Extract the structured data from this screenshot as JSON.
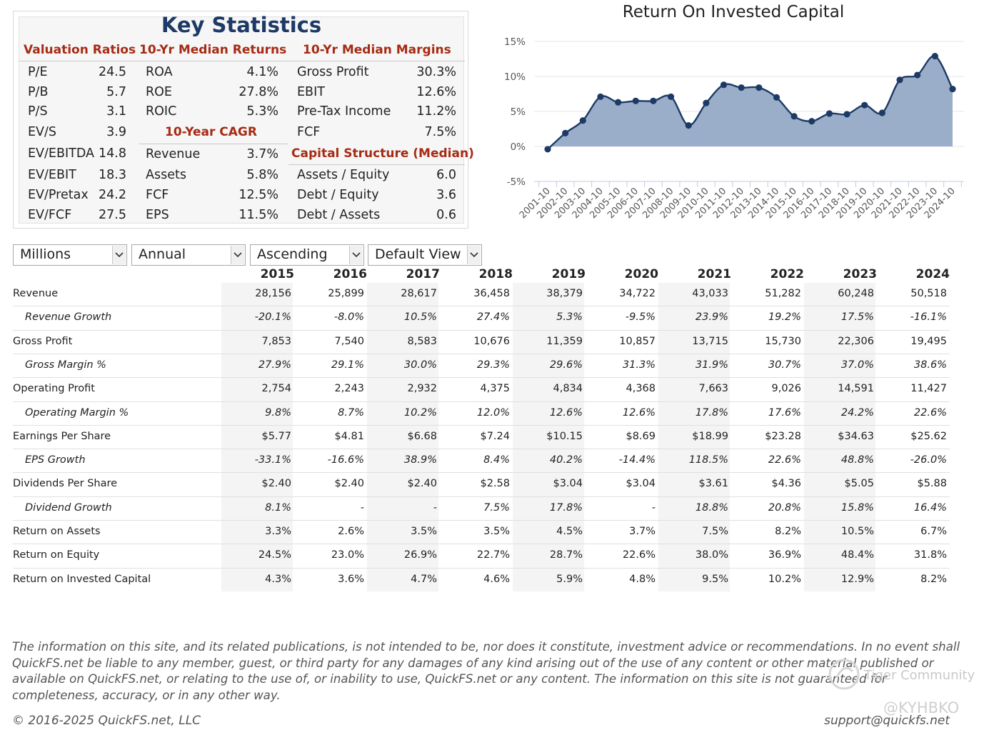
{
  "key_stats": {
    "title": "Key Statistics",
    "sections": {
      "valuation": "Valuation Ratios",
      "returns": "10-Yr Median Returns",
      "margins": "10-Yr Median Margins",
      "cagr": "10-Year CAGR",
      "capital": "Capital Structure (Median)"
    },
    "valuation": [
      {
        "label": "P/E",
        "value": "24.5"
      },
      {
        "label": "P/B",
        "value": "5.7"
      },
      {
        "label": "P/S",
        "value": "3.1"
      },
      {
        "label": "EV/S",
        "value": "3.9"
      },
      {
        "label": "EV/EBITDA",
        "value": "14.8"
      },
      {
        "label": "EV/EBIT",
        "value": "18.3"
      },
      {
        "label": "EV/Pretax",
        "value": "24.2"
      },
      {
        "label": "EV/FCF",
        "value": "27.5"
      }
    ],
    "returns": [
      {
        "label": "ROA",
        "value": "4.1%"
      },
      {
        "label": "ROE",
        "value": "27.8%"
      },
      {
        "label": "ROIC",
        "value": "5.3%"
      }
    ],
    "cagr": [
      {
        "label": "Revenue",
        "value": "3.7%"
      },
      {
        "label": "Assets",
        "value": "5.8%"
      },
      {
        "label": "FCF",
        "value": "12.5%"
      },
      {
        "label": "EPS",
        "value": "11.5%"
      }
    ],
    "margins": [
      {
        "label": "Gross Profit",
        "value": "30.3%"
      },
      {
        "label": "EBIT",
        "value": "12.6%"
      },
      {
        "label": "Pre-Tax Income",
        "value": "11.2%"
      },
      {
        "label": "FCF",
        "value": "7.5%"
      }
    ],
    "capital": [
      {
        "label": "Assets / Equity",
        "value": "6.0"
      },
      {
        "label": "Debt / Equity",
        "value": "3.6"
      },
      {
        "label": "Debt / Assets",
        "value": "0.6"
      }
    ]
  },
  "chart_data": {
    "type": "area",
    "title": "Return On Invested Capital",
    "x": [
      "2001-10",
      "2002-10",
      "2003-10",
      "2004-10",
      "2005-10",
      "2006-10",
      "2007-10",
      "2008-10",
      "2009-10",
      "2010-10",
      "2011-10",
      "2012-10",
      "2013-10",
      "2014-10",
      "2015-10",
      "2016-10",
      "2017-10",
      "2018-10",
      "2019-10",
      "2020-10",
      "2021-10",
      "2022-10",
      "2023-10",
      "2024-10"
    ],
    "values": [
      -0.4,
      1.9,
      3.7,
      7.1,
      6.3,
      6.5,
      6.5,
      7.1,
      3.0,
      6.2,
      8.8,
      8.4,
      8.4,
      7.0,
      4.3,
      3.6,
      4.7,
      4.6,
      5.9,
      4.8,
      9.5,
      10.2,
      12.9,
      8.2
    ],
    "ylim": [
      -5,
      15
    ],
    "yticks": [
      "15%",
      "10%",
      "5%",
      "0%",
      "-5%"
    ],
    "ytick_values": [
      15,
      10,
      5,
      0,
      -5
    ],
    "series_color": "#1d3a66",
    "fill_color": "#9baec9",
    "grid": true
  },
  "controls": {
    "units": "Millions",
    "period": "Annual",
    "order": "Ascending",
    "view": "Default View"
  },
  "table": {
    "years": [
      "2015",
      "2016",
      "2017",
      "2018",
      "2019",
      "2020",
      "2021",
      "2022",
      "2023",
      "2024"
    ],
    "rows": [
      {
        "label": "Revenue",
        "sub": false,
        "values": [
          "28,156",
          "25,899",
          "28,617",
          "36,458",
          "38,379",
          "34,722",
          "43,033",
          "51,282",
          "60,248",
          "50,518"
        ]
      },
      {
        "label": "Revenue Growth",
        "sub": true,
        "values": [
          "-20.1%",
          "-8.0%",
          "10.5%",
          "27.4%",
          "5.3%",
          "-9.5%",
          "23.9%",
          "19.2%",
          "17.5%",
          "-16.1%"
        ]
      },
      {
        "label": "Gross Profit",
        "sub": false,
        "values": [
          "7,853",
          "7,540",
          "8,583",
          "10,676",
          "11,359",
          "10,857",
          "13,715",
          "15,730",
          "22,306",
          "19,495"
        ]
      },
      {
        "label": "Gross Margin %",
        "sub": true,
        "values": [
          "27.9%",
          "29.1%",
          "30.0%",
          "29.3%",
          "29.6%",
          "31.3%",
          "31.9%",
          "30.7%",
          "37.0%",
          "38.6%"
        ]
      },
      {
        "label": "Operating Profit",
        "sub": false,
        "values": [
          "2,754",
          "2,243",
          "2,932",
          "4,375",
          "4,834",
          "4,368",
          "7,663",
          "9,026",
          "14,591",
          "11,427"
        ]
      },
      {
        "label": "Operating Margin %",
        "sub": true,
        "values": [
          "9.8%",
          "8.7%",
          "10.2%",
          "12.0%",
          "12.6%",
          "12.6%",
          "17.8%",
          "17.6%",
          "24.2%",
          "22.6%"
        ]
      },
      {
        "label": "Earnings Per Share",
        "sub": false,
        "values": [
          "$5.77",
          "$4.81",
          "$6.68",
          "$7.24",
          "$10.15",
          "$8.69",
          "$18.99",
          "$23.28",
          "$34.63",
          "$25.62"
        ]
      },
      {
        "label": "EPS Growth",
        "sub": true,
        "values": [
          "-33.1%",
          "-16.6%",
          "38.9%",
          "8.4%",
          "40.2%",
          "-14.4%",
          "118.5%",
          "22.6%",
          "48.8%",
          "-26.0%"
        ]
      },
      {
        "label": "Dividends Per Share",
        "sub": false,
        "values": [
          "$2.40",
          "$2.40",
          "$2.40",
          "$2.58",
          "$3.04",
          "$3.04",
          "$3.61",
          "$4.36",
          "$5.05",
          "$5.88"
        ]
      },
      {
        "label": "Dividend Growth",
        "sub": true,
        "values": [
          "8.1%",
          "-",
          "-",
          "7.5%",
          "17.8%",
          "-",
          "18.8%",
          "20.8%",
          "15.8%",
          "16.4%"
        ]
      },
      {
        "label": "Return on Assets",
        "sub": false,
        "values": [
          "3.3%",
          "2.6%",
          "3.5%",
          "3.5%",
          "4.5%",
          "3.7%",
          "7.5%",
          "8.2%",
          "10.5%",
          "6.7%"
        ]
      },
      {
        "label": "Return on Equity",
        "sub": false,
        "values": [
          "24.5%",
          "23.0%",
          "26.9%",
          "22.7%",
          "28.7%",
          "22.6%",
          "38.0%",
          "36.9%",
          "48.4%",
          "31.8%"
        ]
      },
      {
        "label": "Return on Invested Capital",
        "sub": false,
        "values": [
          "4.3%",
          "3.6%",
          "4.7%",
          "4.6%",
          "5.9%",
          "4.8%",
          "9.5%",
          "10.2%",
          "12.9%",
          "8.2%"
        ]
      }
    ]
  },
  "footer": {
    "disclaimer": "The information on this site, and its related publications, is not intended to be, nor does it constitute, investment advice or recommendations. In no event shall QuickFS.net be liable to any member, guest, or third party for any damages of any kind arising out of the use of any content or other material published or available on QuickFS.net, or relating to the use of, or inability to use, QuickFS.net or any content. The information on this site is not guaranteed for completeness, accuracy, or in any other way.",
    "copyright": "© 2016-2025 QuickFS.net, LLC",
    "support": "support@quickfs.net"
  },
  "watermark": {
    "community": "Tiger Community",
    "handle": "@KYHBKO"
  }
}
